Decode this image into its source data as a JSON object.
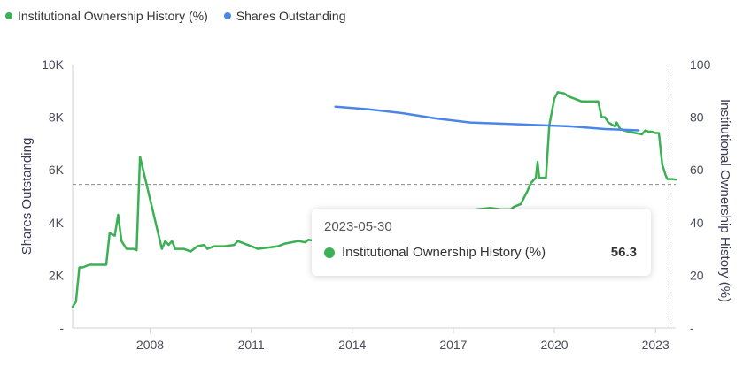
{
  "legend": [
    {
      "name": "Institutional Ownership History (%)",
      "color": "#3cb054"
    },
    {
      "name": "Shares Outstanding",
      "color": "#4a86e8"
    }
  ],
  "tooltip": {
    "date": "2023-05-30",
    "series": "Institutional Ownership History (%)",
    "value": "56.3",
    "color": "#3cb054"
  },
  "chart_data": {
    "type": "line",
    "xlabel": "",
    "x_ticks": [
      "2008",
      "2011",
      "2014",
      "2017",
      "2020",
      "2023"
    ],
    "x_range": [
      2005.7,
      2023.6
    ],
    "left_axis": {
      "label": "Shares Outstanding",
      "range": [
        0,
        10000
      ],
      "ticks": [
        "-",
        "2K",
        "4K",
        "6K",
        "8K",
        "10K"
      ]
    },
    "right_axis": {
      "label": "Institutional Ownership History (%)",
      "range": [
        0,
        100
      ],
      "ticks": [
        "-",
        "20",
        "40",
        "60",
        "80",
        "100"
      ]
    },
    "reference_line_pct": 54.5,
    "crosshair_x": 2023.4,
    "series": [
      {
        "name": "Institutional Ownership History (%)",
        "axis": "right",
        "color": "#3cb054",
        "points": [
          [
            2005.7,
            8
          ],
          [
            2005.8,
            10
          ],
          [
            2005.9,
            23
          ],
          [
            2006.0,
            23
          ],
          [
            2006.2,
            24
          ],
          [
            2006.5,
            24
          ],
          [
            2006.7,
            24
          ],
          [
            2006.8,
            36
          ],
          [
            2006.95,
            35
          ],
          [
            2007.05,
            43
          ],
          [
            2007.15,
            33
          ],
          [
            2007.3,
            30
          ],
          [
            2007.5,
            30
          ],
          [
            2007.6,
            29.5
          ],
          [
            2007.7,
            65
          ],
          [
            2008.35,
            30
          ],
          [
            2008.45,
            33
          ],
          [
            2008.55,
            31.5
          ],
          [
            2008.65,
            33
          ],
          [
            2008.75,
            30
          ],
          [
            2009.0,
            30
          ],
          [
            2009.2,
            29
          ],
          [
            2009.4,
            31
          ],
          [
            2009.6,
            31.5
          ],
          [
            2009.7,
            30
          ],
          [
            2009.9,
            31
          ],
          [
            2010.2,
            31
          ],
          [
            2010.5,
            31.5
          ],
          [
            2010.6,
            33
          ],
          [
            2010.8,
            32
          ],
          [
            2011.2,
            30
          ],
          [
            2011.5,
            30.5
          ],
          [
            2011.8,
            31
          ],
          [
            2012.0,
            32
          ],
          [
            2012.4,
            33
          ],
          [
            2012.6,
            32.5
          ],
          [
            2012.7,
            33.5
          ],
          [
            2012.9,
            33
          ],
          [
            2013.1,
            33.5
          ],
          [
            2013.4,
            34
          ],
          [
            2016.6,
            40
          ],
          [
            2017.3,
            44
          ],
          [
            2017.7,
            45
          ],
          [
            2018.1,
            45.5
          ],
          [
            2018.4,
            45
          ],
          [
            2018.7,
            45
          ],
          [
            2018.8,
            46
          ],
          [
            2019.0,
            47
          ],
          [
            2019.2,
            52
          ],
          [
            2019.3,
            55
          ],
          [
            2019.45,
            57
          ],
          [
            2019.5,
            63
          ],
          [
            2019.55,
            57
          ],
          [
            2019.75,
            57
          ],
          [
            2019.85,
            77
          ],
          [
            2020.0,
            87
          ],
          [
            2020.1,
            89.5
          ],
          [
            2020.3,
            89
          ],
          [
            2020.4,
            88
          ],
          [
            2020.5,
            87.5
          ],
          [
            2020.7,
            86.5
          ],
          [
            2020.8,
            86
          ],
          [
            2021.0,
            86
          ],
          [
            2021.2,
            86
          ],
          [
            2021.3,
            86
          ],
          [
            2021.4,
            80
          ],
          [
            2021.5,
            80
          ],
          [
            2021.6,
            78
          ],
          [
            2021.8,
            76.5
          ],
          [
            2021.85,
            78
          ],
          [
            2021.95,
            75.5
          ],
          [
            2022.2,
            74.5
          ],
          [
            2022.4,
            74
          ],
          [
            2022.6,
            73.5
          ],
          [
            2022.7,
            75
          ],
          [
            2022.8,
            74.5
          ],
          [
            2022.9,
            74.5
          ],
          [
            2023.0,
            74
          ],
          [
            2023.1,
            74
          ],
          [
            2023.2,
            62
          ],
          [
            2023.3,
            58
          ],
          [
            2023.35,
            56.5
          ],
          [
            2023.5,
            56.5
          ],
          [
            2023.6,
            56.3
          ]
        ]
      },
      {
        "name": "Shares Outstanding",
        "axis": "left",
        "color": "#4a86e8",
        "points": [
          [
            2013.5,
            8400
          ],
          [
            2014.5,
            8300
          ],
          [
            2015.5,
            8150
          ],
          [
            2016.5,
            7950
          ],
          [
            2017.5,
            7800
          ],
          [
            2018.5,
            7750
          ],
          [
            2019.5,
            7700
          ],
          [
            2020.5,
            7650
          ],
          [
            2021.5,
            7550
          ],
          [
            2022.5,
            7500
          ]
        ]
      }
    ]
  }
}
